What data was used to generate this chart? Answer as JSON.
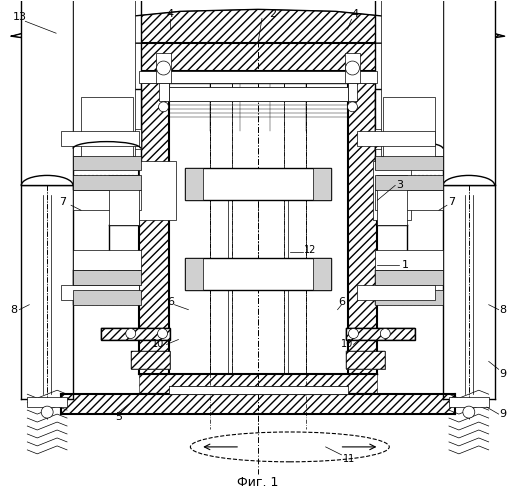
{
  "bg_color": "#ffffff",
  "line_color": "#000000",
  "fig_width": 5.16,
  "fig_height": 5.0,
  "dpi": 100,
  "caption": "Фиг. 1"
}
